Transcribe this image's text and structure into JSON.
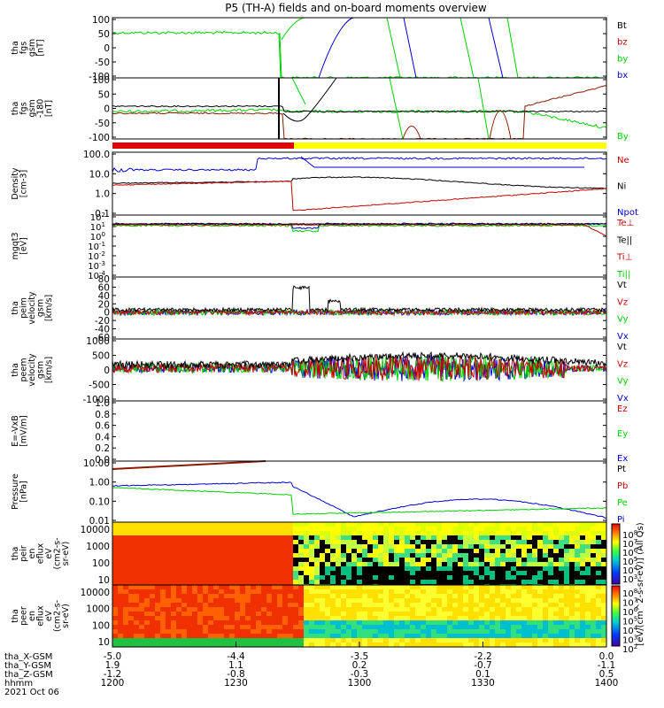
{
  "title": "P5 (TH-A) fields and on-board moments overview",
  "colors": {
    "black": "#000000",
    "red": "#c80000",
    "darkred": "#8b1a00",
    "green": "#00d000",
    "blue": "#0000d0",
    "bar_red": "#e00000",
    "bar_yellow": "#ffff00"
  },
  "chart_data": [
    {
      "type": "line",
      "ylabel_lines": [
        "tha",
        "fgs",
        "gsm",
        "[nT]"
      ],
      "ylim": [
        -100,
        100
      ],
      "ticks": [
        "100",
        "50",
        "0",
        "-50",
        "-100"
      ],
      "legend": [
        {
          "label": "Bt",
          "color": "#000000"
        },
        {
          "label": "bz",
          "color": "#c80000"
        },
        {
          "label": "by",
          "color": "#00d000"
        },
        {
          "label": "bx",
          "color": "#0000d0"
        }
      ]
    },
    {
      "type": "line",
      "ylabel_lines": [
        "tha",
        "fgs",
        "gsm",
        "-180",
        "[nT]"
      ],
      "ylim": [
        -120,
        120
      ],
      "ticks": [
        "100",
        "50",
        "0",
        "-50",
        "-100"
      ],
      "legend": [
        {
          "label": "By",
          "color": "#00d000"
        }
      ]
    },
    {
      "type": "line",
      "ylabel_lines": [
        "Density",
        "[cm-3]"
      ],
      "scale": "log",
      "ticks": [
        "100.0",
        "10.0",
        "1.0",
        "0.1"
      ],
      "legend": [
        {
          "label": "Ne",
          "color": "#c80000"
        },
        {
          "label": "Ni",
          "color": "#000000"
        },
        {
          "label": "Npot",
          "color": "#0000d0"
        }
      ]
    },
    {
      "type": "line",
      "ylabel_lines": [
        "mgqt3",
        "[eV]"
      ],
      "scale": "log",
      "ticks": [
        "10",
        "10",
        "10",
        "10",
        "10",
        "10",
        "10"
      ],
      "legend": [
        {
          "label": "Te⊥",
          "color": "#c80000"
        },
        {
          "label": "Te||",
          "color": "#000000"
        },
        {
          "label": "Ti⊥",
          "color": "#c80000"
        },
        {
          "label": "Ti||",
          "color": "#00d000"
        }
      ]
    },
    {
      "type": "line",
      "ylabel_lines": [
        "tha",
        "peim",
        "velocity",
        "gsm",
        "[km/s]"
      ],
      "ylim": [
        -100,
        100
      ],
      "ticks": [
        "80",
        "60",
        "40",
        "20",
        "0",
        "-20",
        "-40",
        "-60"
      ],
      "legend": [
        {
          "label": "Vt",
          "color": "#000000"
        },
        {
          "label": "Vz",
          "color": "#c80000"
        },
        {
          "label": "Vy",
          "color": "#00d000"
        },
        {
          "label": "Vx",
          "color": "#0000d0"
        }
      ]
    },
    {
      "type": "line",
      "ylabel_lines": [
        "tha",
        "peem",
        "velocity",
        "gsm",
        "[km/s]"
      ],
      "ylim": [
        -1000,
        1000
      ],
      "ticks": [
        "1000",
        "500",
        "0",
        "-500",
        "-1000"
      ],
      "legend": [
        {
          "label": "Vt",
          "color": "#000000"
        },
        {
          "label": "Vz",
          "color": "#c80000"
        },
        {
          "label": "Vy",
          "color": "#00d000"
        },
        {
          "label": "Vx",
          "color": "#0000d0"
        }
      ]
    },
    {
      "type": "line",
      "ylabel_lines": [
        "E=-VxB",
        "[mV/m]"
      ],
      "ylim": [
        0,
        1
      ],
      "ticks": [
        "1.0",
        "0.8",
        "0.6",
        "0.4",
        "0.2",
        "0.0"
      ],
      "legend": [
        {
          "label": "Ez",
          "color": "#c80000"
        },
        {
          "label": "Ey",
          "color": "#00d000"
        },
        {
          "label": "Ex",
          "color": "#0000d0"
        }
      ]
    },
    {
      "type": "line",
      "ylabel_lines": [
        "Pressure",
        "[nPa]"
      ],
      "scale": "log",
      "ticks": [
        "10.00",
        "1.00",
        "0.10",
        "0.01"
      ],
      "legend": [
        {
          "label": "Pt",
          "color": "#000000"
        },
        {
          "label": "Pb",
          "color": "#c80000"
        },
        {
          "label": "Pe",
          "color": "#00d000"
        },
        {
          "label": "Pi",
          "color": "#0000d0"
        }
      ]
    },
    {
      "type": "heatmap",
      "ylabel_lines": [
        "tha",
        "peir",
        "en",
        "eflux",
        "eV",
        "(cm2-s-",
        "sr-eV)"
      ],
      "scale": "log",
      "ticks": [
        "10000",
        "1000",
        "100",
        "10"
      ]
    },
    {
      "type": "heatmap",
      "ylabel_lines": [
        "tha",
        "peer",
        "en",
        "eflux",
        "eV",
        "(cm2-s-",
        "sr-eV)"
      ],
      "scale": "log",
      "ticks": [
        "10000",
        "1000",
        "100",
        "10"
      ]
    }
  ],
  "colorbar": {
    "label": "[eV/(cm^2-s-sr-eV)] (All Qs)",
    "ticks_upper": [
      "10^8",
      "10^7",
      "10^6",
      "10^5",
      "10^4",
      "10^3"
    ],
    "ticks_lower": [
      "10^8",
      "10^7",
      "10^6",
      "10^5",
      "10^4",
      "10^3",
      "10^2"
    ]
  },
  "xaxis": {
    "row_labels": [
      "tha_X-GSM",
      "tha_Y-GSM",
      "tha_Z-GSM",
      "hhmm",
      "2021 Oct 06"
    ],
    "columns": [
      [
        "-5.0",
        "1.9",
        "-1.2",
        "1200"
      ],
      [
        "-4.4",
        "1.1",
        "-0.8",
        "1230"
      ],
      [
        "-3.5",
        "0.2",
        "-0.3",
        "1300"
      ],
      [
        "-2.2",
        "-0.7",
        "0.1",
        "1330"
      ],
      [
        "0.0",
        "-1.1",
        "0.5",
        "1400"
      ]
    ]
  }
}
